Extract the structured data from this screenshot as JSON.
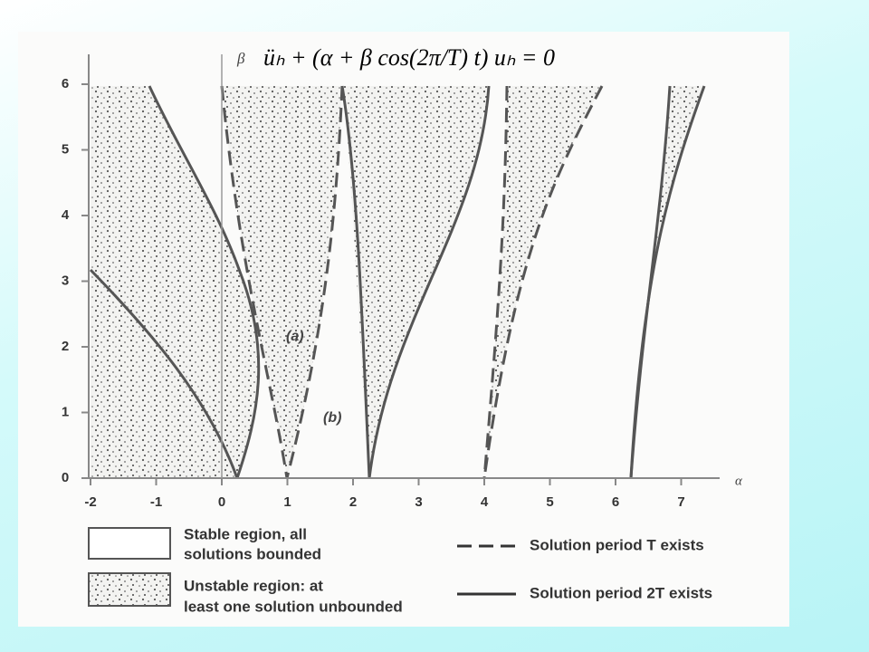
{
  "equation": "üₕ + (α + β cos(2π/T) t) uₕ = 0",
  "axes": {
    "x_label": "α",
    "y_label": "β",
    "xticks": [
      -2,
      -1,
      0,
      1,
      2,
      3,
      4,
      5,
      6,
      7
    ],
    "yticks": [
      0,
      1,
      2,
      3,
      4,
      5,
      6
    ]
  },
  "annotations": [
    "(a)",
    "(b)"
  ],
  "legend": {
    "stable": [
      "Stable region, all",
      "solutions bounded"
    ],
    "unstable": [
      "Unstable region: at",
      "least one solution unbounded"
    ],
    "dashed": "Solution period T exists",
    "solid": "Solution period 2T exists"
  }
}
